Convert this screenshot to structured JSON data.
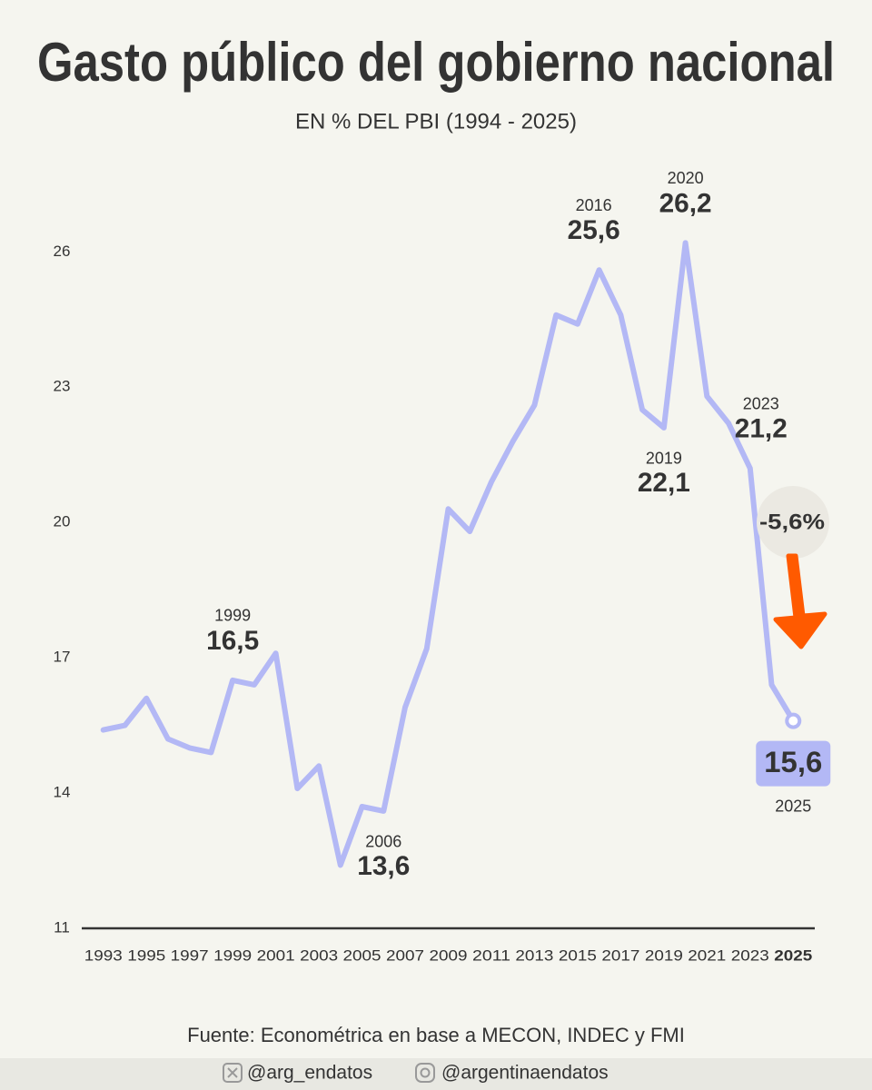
{
  "chart_data": {
    "type": "line",
    "title": "Gasto público del gobierno nacional",
    "subtitle": "EN % DEL PBI (1994 - 2025)",
    "x": [
      1993,
      1994,
      1995,
      1996,
      1997,
      1998,
      1999,
      2000,
      2001,
      2002,
      2003,
      2004,
      2005,
      2006,
      2007,
      2008,
      2009,
      2010,
      2011,
      2012,
      2013,
      2014,
      2015,
      2016,
      2017,
      2018,
      2019,
      2020,
      2021,
      2022,
      2023,
      2024,
      2025
    ],
    "series": [
      {
        "name": "Gasto público",
        "color": "#b3b8f5",
        "values": [
          15.4,
          15.5,
          16.1,
          15.2,
          15.0,
          14.9,
          16.5,
          16.4,
          17.1,
          14.1,
          14.6,
          12.4,
          13.7,
          13.6,
          15.9,
          17.2,
          20.3,
          19.8,
          20.9,
          21.8,
          22.6,
          24.6,
          24.4,
          25.6,
          24.6,
          22.5,
          22.1,
          26.2,
          22.8,
          22.2,
          21.2,
          16.4,
          15.6
        ],
        "value_labels": [
          null,
          null,
          null,
          null,
          null,
          null,
          "16,5",
          null,
          null,
          null,
          null,
          null,
          null,
          "13,6",
          null,
          null,
          null,
          null,
          null,
          null,
          null,
          null,
          null,
          "25,6",
          null,
          null,
          "22,1",
          "26,2",
          null,
          null,
          "21,2",
          null,
          "15,6"
        ]
      }
    ],
    "xlim": [
      1992,
      2026
    ],
    "xticks": [
      1993,
      1995,
      1997,
      1999,
      2001,
      2003,
      2005,
      2007,
      2009,
      2011,
      2013,
      2015,
      2017,
      2019,
      2021,
      2023,
      2025
    ],
    "ylim": [
      11,
      28
    ],
    "yticks": [
      11,
      14,
      17,
      20,
      23,
      26
    ],
    "grid": false,
    "change": -5.6,
    "change_label": "-5,6%",
    "source": "Fuente: Econométrica en base a MECON, INDEC y FMI",
    "handles": [
      "@arg_endatos",
      "@argentinaendatos"
    ]
  }
}
